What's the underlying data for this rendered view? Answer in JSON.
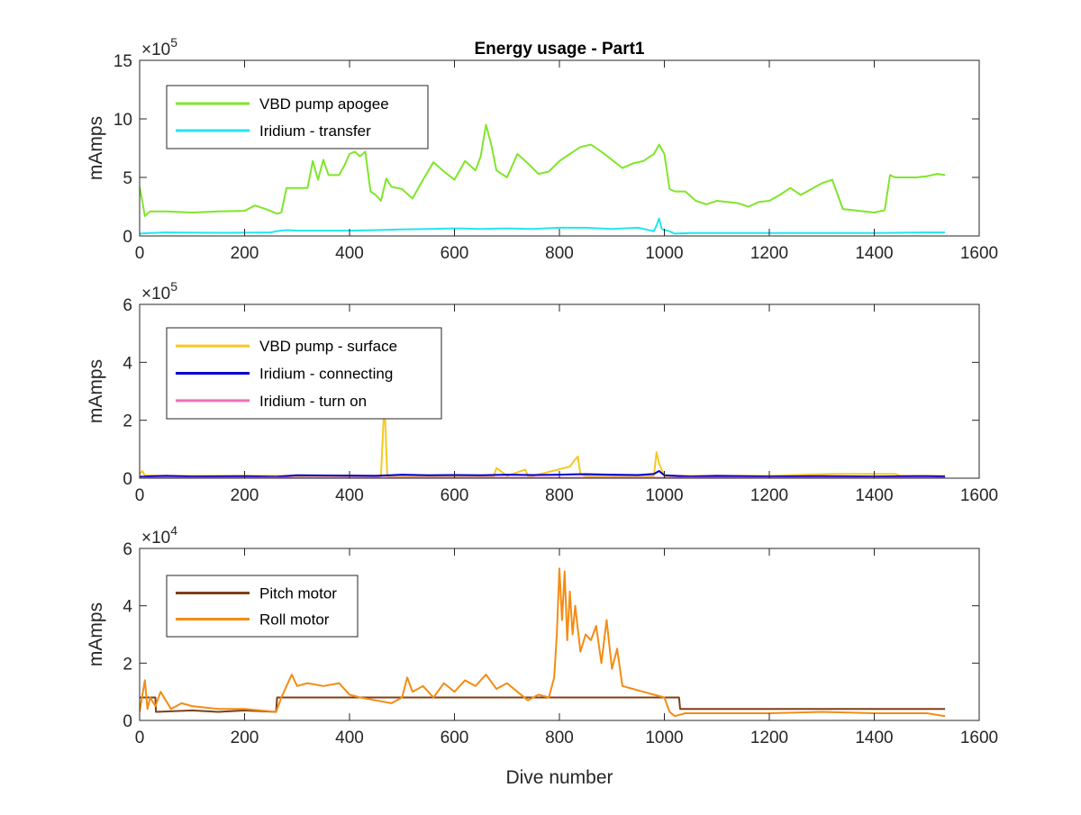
{
  "chart_data": [
    {
      "type": "line",
      "title": "Energy usage - Part1",
      "ylabel": "mAmps",
      "xlabel": "",
      "xlim": [
        0,
        1600
      ],
      "ylim": [
        0,
        1500000
      ],
      "exponent_label": "×10",
      "exponent_power": "5",
      "xticks": [
        "0",
        "200",
        "400",
        "600",
        "800",
        "1000",
        "1200",
        "1400",
        "1600"
      ],
      "yticks": [
        "0",
        "5",
        "10",
        "15"
      ],
      "legend_position": "top-left",
      "series": [
        {
          "name": "VBD pump apogee",
          "color": "#7fe62a",
          "x": [
            0,
            5,
            10,
            20,
            50,
            100,
            150,
            200,
            220,
            240,
            262,
            270,
            280,
            300,
            320,
            330,
            340,
            350,
            360,
            380,
            390,
            400,
            410,
            420,
            430,
            440,
            450,
            460,
            470,
            480,
            500,
            520,
            540,
            560,
            580,
            600,
            620,
            640,
            650,
            660,
            670,
            680,
            700,
            720,
            740,
            760,
            780,
            800,
            820,
            840,
            860,
            880,
            900,
            920,
            940,
            960,
            980,
            990,
            1000,
            1010,
            1020,
            1040,
            1060,
            1080,
            1100,
            1120,
            1140,
            1160,
            1180,
            1200,
            1220,
            1240,
            1260,
            1280,
            1300,
            1320,
            1340,
            1360,
            1380,
            1400,
            1420,
            1430,
            1440,
            1460,
            1480,
            1500,
            1520,
            1535
          ],
          "y": [
            420000,
            300000,
            170000,
            210000,
            210000,
            200000,
            210000,
            215000,
            260000,
            230000,
            190000,
            200000,
            410000,
            410000,
            410000,
            640000,
            480000,
            650000,
            520000,
            520000,
            600000,
            700000,
            720000,
            680000,
            720000,
            380000,
            350000,
            300000,
            490000,
            420000,
            400000,
            320000,
            480000,
            630000,
            550000,
            480000,
            640000,
            560000,
            680000,
            950000,
            780000,
            560000,
            500000,
            700000,
            620000,
            530000,
            550000,
            640000,
            700000,
            760000,
            780000,
            720000,
            650000,
            580000,
            620000,
            640000,
            700000,
            780000,
            700000,
            400000,
            380000,
            380000,
            300000,
            270000,
            300000,
            290000,
            280000,
            250000,
            290000,
            300000,
            350000,
            410000,
            350000,
            400000,
            450000,
            480000,
            230000,
            220000,
            210000,
            200000,
            220000,
            520000,
            500000,
            500000,
            500000,
            510000,
            530000,
            520000
          ]
        },
        {
          "name": "Iridium - transfer",
          "color": "#22e6f0",
          "x": [
            0,
            20,
            50,
            100,
            150,
            200,
            250,
            260,
            280,
            300,
            350,
            400,
            450,
            500,
            550,
            600,
            650,
            700,
            750,
            800,
            850,
            900,
            950,
            980,
            985,
            990,
            995,
            1000,
            1010,
            1020,
            1050,
            1100,
            1200,
            1300,
            1400,
            1500,
            1535
          ],
          "y": [
            20000,
            25000,
            30000,
            28000,
            27000,
            28000,
            30000,
            40000,
            50000,
            45000,
            45000,
            45000,
            50000,
            55000,
            60000,
            65000,
            60000,
            65000,
            60000,
            70000,
            70000,
            60000,
            70000,
            40000,
            90000,
            150000,
            60000,
            50000,
            40000,
            20000,
            25000,
            25000,
            25000,
            25000,
            25000,
            30000,
            30000
          ]
        }
      ]
    },
    {
      "type": "line",
      "title": "",
      "ylabel": "mAmps",
      "xlabel": "",
      "xlim": [
        0,
        1600
      ],
      "ylim": [
        0,
        600000
      ],
      "exponent_label": "×10",
      "exponent_power": "5",
      "xticks": [
        "0",
        "200",
        "400",
        "600",
        "800",
        "1000",
        "1200",
        "1400",
        "1600"
      ],
      "yticks": [
        "0",
        "2",
        "4",
        "6"
      ],
      "legend_position": "top-left",
      "series": [
        {
          "name": "VBD pump - surface",
          "color": "#f7c823",
          "x": [
            0,
            5,
            10,
            50,
            100,
            200,
            300,
            400,
            460,
            465,
            468,
            472,
            480,
            600,
            675,
            680,
            700,
            735,
            740,
            750,
            820,
            828,
            835,
            840,
            850,
            980,
            985,
            990,
            1000,
            1050,
            1200,
            1320,
            1440,
            1450,
            1535
          ],
          "y": [
            15000,
            25000,
            10000,
            8000,
            8000,
            8000,
            8000,
            8000,
            8000,
            210000,
            200000,
            8000,
            8000,
            8000,
            8000,
            35000,
            8000,
            30000,
            8000,
            8000,
            40000,
            60000,
            75000,
            15000,
            8000,
            8000,
            90000,
            50000,
            8000,
            8000,
            8000,
            15000,
            15000,
            8000,
            8000
          ]
        },
        {
          "name": "Iridium - connecting",
          "color": "#0000cc",
          "x": [
            0,
            50,
            100,
            200,
            260,
            300,
            400,
            450,
            500,
            550,
            600,
            650,
            700,
            750,
            800,
            850,
            900,
            950,
            980,
            990,
            1000,
            1050,
            1100,
            1200,
            1300,
            1400,
            1500,
            1535
          ],
          "y": [
            5000,
            8000,
            6000,
            7000,
            5000,
            10000,
            9000,
            8000,
            12000,
            10000,
            11000,
            10000,
            12000,
            11000,
            12000,
            14000,
            12000,
            11000,
            15000,
            25000,
            10000,
            6000,
            8000,
            6000,
            7000,
            6000,
            7000,
            6000
          ]
        },
        {
          "name": "Iridium - turn on",
          "color": "#f06eb4",
          "x": [
            0,
            500,
            1000,
            1535
          ],
          "y": [
            1000,
            1500,
            1500,
            1000
          ]
        }
      ]
    },
    {
      "type": "line",
      "title": "",
      "ylabel": "mAmps",
      "xlabel": "Dive number",
      "xlim": [
        0,
        1600
      ],
      "ylim": [
        0,
        60000
      ],
      "exponent_label": "×10",
      "exponent_power": "4",
      "xticks": [
        "0",
        "200",
        "400",
        "600",
        "800",
        "1000",
        "1200",
        "1400",
        "1600"
      ],
      "yticks": [
        "0",
        "2",
        "4",
        "6"
      ],
      "legend_position": "top-left",
      "series": [
        {
          "name": "Pitch motor",
          "color": "#7f3f16",
          "x": [
            0,
            30,
            31,
            100,
            150,
            200,
            260,
            262,
            300,
            400,
            500,
            600,
            700,
            800,
            900,
            1000,
            1028,
            1030,
            1100,
            1200,
            1300,
            1400,
            1500,
            1535
          ],
          "y": [
            8000,
            8000,
            3000,
            3500,
            3000,
            3500,
            3000,
            8000,
            8000,
            8000,
            8000,
            8000,
            8000,
            8000,
            8000,
            8000,
            8000,
            4000,
            4000,
            4000,
            4000,
            4000,
            4000,
            4000
          ]
        },
        {
          "name": "Roll motor",
          "color": "#f48c14",
          "x": [
            0,
            10,
            15,
            20,
            30,
            40,
            60,
            80,
            100,
            150,
            200,
            260,
            270,
            290,
            300,
            320,
            350,
            380,
            400,
            420,
            450,
            480,
            500,
            510,
            520,
            540,
            560,
            580,
            600,
            620,
            640,
            660,
            680,
            700,
            720,
            740,
            760,
            780,
            790,
            795,
            800,
            805,
            810,
            815,
            820,
            825,
            830,
            840,
            850,
            860,
            870,
            880,
            890,
            900,
            910,
            920,
            940,
            960,
            980,
            1000,
            1010,
            1020,
            1040,
            1100,
            1200,
            1300,
            1400,
            1500,
            1535
          ],
          "y": [
            3000,
            14000,
            4000,
            8000,
            5000,
            10000,
            4000,
            6000,
            5000,
            4000,
            4000,
            3000,
            8000,
            16000,
            12000,
            13000,
            12000,
            13000,
            9000,
            8000,
            7000,
            6000,
            8000,
            15000,
            10000,
            12000,
            8000,
            13000,
            10000,
            14000,
            12000,
            16000,
            11000,
            13000,
            10000,
            7000,
            9000,
            8000,
            15000,
            30000,
            53000,
            35000,
            52000,
            28000,
            45000,
            30000,
            40000,
            24000,
            30000,
            28000,
            33000,
            20000,
            35000,
            18000,
            25000,
            12000,
            11000,
            10000,
            9000,
            8000,
            3000,
            1500,
            2500,
            2500,
            2500,
            3000,
            2500,
            2500,
            1500
          ]
        }
      ]
    }
  ]
}
